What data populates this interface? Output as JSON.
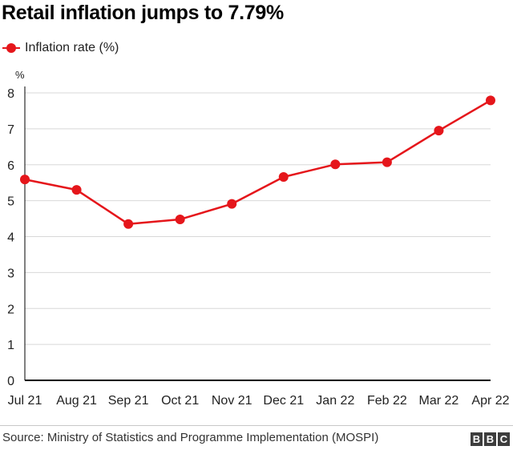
{
  "title": "Retail inflation jumps to 7.79%",
  "colors": {
    "series": "#e5161b",
    "grid": "#d8d8d8",
    "axis": "#000000",
    "text": "#222222"
  },
  "chart_data": {
    "type": "line",
    "title": "Retail inflation jumps to 7.79%",
    "ylabel": "%",
    "xlabel": "",
    "categories": [
      "Jul 21",
      "Aug 21",
      "Sep 21",
      "Oct 21",
      "Nov 21",
      "Dec 21",
      "Jan 22",
      "Feb 22",
      "Mar 22",
      "Apr 22"
    ],
    "series": [
      {
        "name": "Inflation rate (%)",
        "values": [
          5.59,
          5.3,
          4.35,
          4.48,
          4.91,
          5.66,
          6.01,
          6.07,
          6.95,
          7.79
        ]
      }
    ],
    "ylim": [
      0,
      8
    ],
    "yticks": [
      "0",
      "1",
      "2",
      "3",
      "4",
      "5",
      "6",
      "7",
      "8"
    ],
    "grid": true,
    "legend": "top-left"
  },
  "source": "Source: Ministry of Statistics and Programme Implementation (MOSPI)",
  "logo": [
    "B",
    "B",
    "C"
  ]
}
